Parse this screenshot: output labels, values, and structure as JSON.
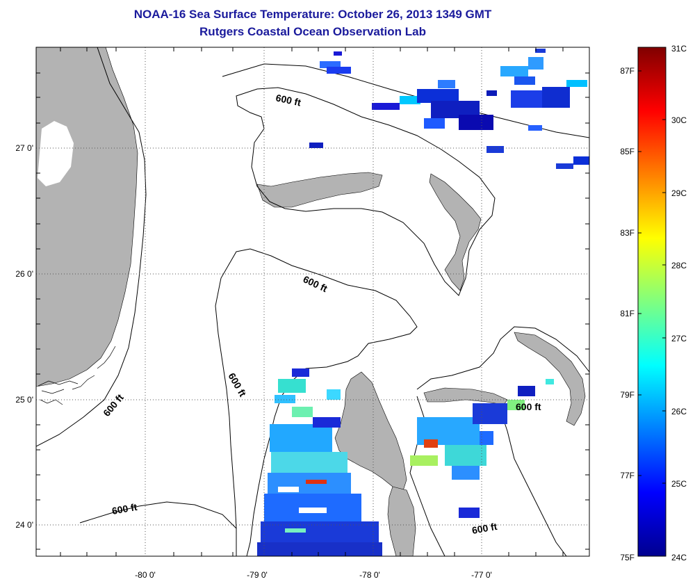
{
  "title": "NOAA-16 Sea Surface Temperature:  October 26, 2013 1349 GMT",
  "subtitle": "Rutgers Coastal Ocean Observation Lab",
  "map": {
    "lat_ticks": [
      "27 0'",
      "26 0'",
      "25 0'",
      "24 0'"
    ],
    "lon_ticks": [
      "-80 0'",
      "-79 0'",
      "-78 0'",
      "-77 0'"
    ],
    "isobath_labels": [
      "600 ft",
      "600 ft",
      "600 ft",
      "600 ft",
      "600 ft",
      "600 ft"
    ],
    "land_color": "#b3b3b3",
    "grid": "dotted"
  },
  "colorbar": {
    "celsius_labels": [
      "31C",
      "30C",
      "29C",
      "28C",
      "27C",
      "26C",
      "25C",
      "24C"
    ],
    "fahrenheit_labels": [
      "87F",
      "85F",
      "83F",
      "81F",
      "79F",
      "77F",
      "75F"
    ],
    "colormap": "jet",
    "range_c": [
      24,
      31
    ]
  }
}
